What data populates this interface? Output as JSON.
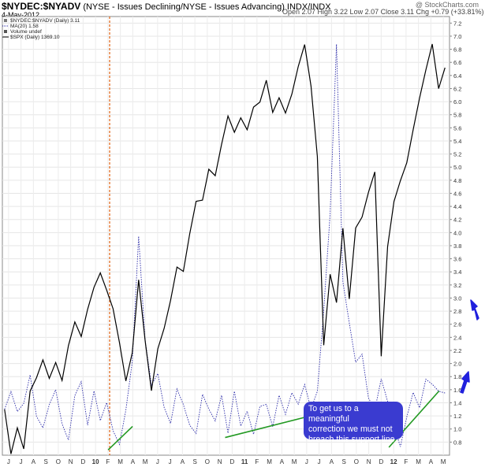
{
  "header": {
    "symbol": "$NYDEC:$NYADV",
    "description": "(NYSE - Issues Declining/NYSE - Issues Advancing) INDX/INDX",
    "date": "4-May-2012",
    "quote": "Open 2.07  High 3.22  Low 2.07  Close 3.11  Chg +0.79 (+33.81%) ▲",
    "watermark": "@ StockCharts.com"
  },
  "legend": [
    {
      "label": "$NYDEC:$NYADV (Daily) 3.11",
      "color": "#777777",
      "symbol": "square"
    },
    {
      "label": "MA(20) 1.58",
      "color": "#2a2aa8",
      "symbol": "dotted-line"
    },
    {
      "label": "Volume undef",
      "color": "#555555",
      "symbol": "bar-icon"
    },
    {
      "label": "$SPX (Daily) 1369.10",
      "color": "#000000",
      "symbol": "line"
    }
  ],
  "annotation": {
    "line1": "To get us to a meaningful",
    "line2": "correction we must  not",
    "line3": "breach this support line.",
    "box_color": "#3a3bd0",
    "arrow_color": "#2020dd",
    "support_color": "#229922",
    "marker_color": "#e06010"
  },
  "chart_data": {
    "type": "line",
    "title": "$NYDEC:$NYADV",
    "y_axis_side": "right",
    "ylim": [
      0.6,
      7.3
    ],
    "y_ticks": [
      "0.8",
      "1.0",
      "1.2",
      "1.4",
      "1.6",
      "1.8",
      "2.0",
      "2.2",
      "2.4",
      "2.6",
      "2.8",
      "3.0",
      "3.2",
      "3.4",
      "3.6",
      "3.8",
      "4.0",
      "4.2",
      "4.4",
      "4.6",
      "4.8",
      "5.0",
      "5.2",
      "5.4",
      "5.6",
      "5.8",
      "6.0",
      "6.2",
      "6.4",
      "6.6",
      "6.8",
      "7.0",
      "7.2"
    ],
    "x_ticks": [
      "J",
      "J",
      "A",
      "S",
      "O",
      "N",
      "D",
      "10",
      "F",
      "M",
      "A",
      "M",
      "J",
      "J",
      "A",
      "S",
      "O",
      "N",
      "D",
      "11",
      "F",
      "M",
      "A",
      "M",
      "J",
      "J",
      "A",
      "S",
      "O",
      "N",
      "D",
      "12",
      "F",
      "M",
      "A",
      "M"
    ],
    "series": [
      {
        "name": "MA(20)",
        "color": "#2a2aa8",
        "style": "dotted",
        "values": [
          1.3,
          1.55,
          1.25,
          1.4,
          1.85,
          1.2,
          1.0,
          1.35,
          1.6,
          1.1,
          0.85,
          1.5,
          1.7,
          1.05,
          1.6,
          1.15,
          1.4,
          0.95,
          0.75,
          1.3,
          2.05,
          3.95,
          2.35,
          1.65,
          1.85,
          1.35,
          1.1,
          1.6,
          1.35,
          1.05,
          0.95,
          1.55,
          1.3,
          1.1,
          1.5,
          0.95,
          1.6,
          1.05,
          1.25,
          0.9,
          1.35,
          1.4,
          1.05,
          1.5,
          1.2,
          1.55,
          1.4,
          1.7,
          1.3,
          1.55,
          2.8,
          4.3,
          6.9,
          3.25,
          2.6,
          2.0,
          2.15,
          1.5,
          1.3,
          1.75,
          1.4,
          1.05,
          0.75,
          1.2,
          1.55,
          1.3,
          1.75,
          1.7,
          1.6,
          1.55
        ]
      },
      {
        "name": "$SPX",
        "color": "#000000",
        "style": "solid",
        "values": [
          1.3,
          0.65,
          1.05,
          0.7,
          1.55,
          1.75,
          2.05,
          1.8,
          2.05,
          1.75,
          2.25,
          2.6,
          2.4,
          2.85,
          3.2,
          3.4,
          3.1,
          2.8,
          2.3,
          1.75,
          2.2,
          3.3,
          2.35,
          1.55,
          2.2,
          2.55,
          3.0,
          3.5,
          3.4,
          3.95,
          4.45,
          4.5,
          5.0,
          4.9,
          5.35,
          5.75,
          5.5,
          5.75,
          5.6,
          5.95,
          6.0,
          6.3,
          5.8,
          6.05,
          5.85,
          6.15,
          6.55,
          6.85,
          6.2,
          5.15,
          2.3,
          3.4,
          2.95,
          4.05,
          2.95,
          4.05,
          4.25,
          4.65,
          4.95,
          2.1,
          3.75,
          4.45,
          4.8,
          5.1,
          5.6,
          6.05,
          6.45,
          6.85,
          6.2,
          6.55
        ]
      }
    ],
    "support_lines": [
      {
        "x": [
          0.2365,
          0.2912
        ],
        "y": [
          0.68,
          1.04
        ]
      },
      {
        "x": [
          0.4982,
          0.7985
        ],
        "y": [
          0.87,
          1.39
        ]
      },
      {
        "x": [
          0.8645,
          0.9766
        ],
        "y": [
          0.72,
          1.58
        ]
      }
    ],
    "event_line_x": 0.2399
  }
}
